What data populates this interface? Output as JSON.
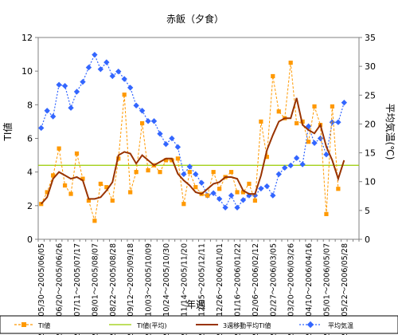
{
  "chart_data": {
    "type": "line",
    "title": "赤飯（夕食）",
    "xlabel": "年週",
    "ylabel_left": "TI値",
    "ylabel_right": "平均気温(℃)",
    "ylim_left": [
      0,
      12
    ],
    "ylim_right": [
      0,
      35
    ],
    "yticks_left": [
      0,
      2,
      4,
      6,
      8,
      10,
      12
    ],
    "yticks_right": [
      0,
      5,
      10,
      15,
      20,
      25,
      30,
      35
    ],
    "n_weeks": 54,
    "xtick_labels": [
      "2005/05/30〜2005/06/05",
      "2005/06/20〜2005/06/26",
      "2005/07/11〜2005/07/17",
      "2005/08/01〜2005/08/07",
      "2005/08/22〜2005/08/28",
      "2005/09/12〜2005/09/18",
      "2005/10/03〜2005/10/09",
      "2005/10/24〜2005/10/30",
      "2005/11/14〜2005/11/20",
      "2005/12/05〜2005/12/11",
      "2005/12/26〜2006/01/01",
      "2006/01/16〜2006/01/22",
      "2006/02/06〜2006/02/12",
      "2006/02/27〜2006/03/05",
      "2006/03/20〜2006/03/26",
      "2006/04/10〜2006/04/16",
      "2006/05/01〜2006/05/07",
      "2006/05/22〜2006/05/28"
    ],
    "legend": {
      "position": "bottom",
      "entries": [
        "TI値",
        "TI値(平均)",
        "3週移動平均TI値",
        "平均気温"
      ]
    },
    "colors": {
      "ti": "#FF9900",
      "ti_avg": "#99CC00",
      "moving_avg": "#993300",
      "temperature": "#3366FF"
    },
    "series": [
      {
        "name": "TI値",
        "axis": "left",
        "values": [
          2.1,
          2.8,
          3.8,
          5.4,
          3.2,
          2.7,
          5.1,
          3.6,
          2.3,
          1.1,
          3.3,
          3.1,
          2.3,
          4.8,
          8.6,
          2.8,
          4.0,
          6.9,
          4.1,
          4.4,
          4.0,
          4.7,
          4.7,
          4.8,
          2.1,
          4.0,
          3.1,
          2.7,
          2.6,
          4.0,
          3.0,
          3.7,
          4.0,
          2.8,
          2.8,
          3.3,
          2.3,
          7.0,
          4.9,
          9.7,
          7.6,
          7.2,
          10.5,
          6.9,
          7.0,
          5.8,
          7.9,
          6.8,
          1.5,
          7.9,
          3.0,
          null,
          null,
          null
        ]
      },
      {
        "name": "TI値(平均)",
        "axis": "left",
        "values": [
          4.4
        ]
      },
      {
        "name": "3週移動平均TI値",
        "axis": "left",
        "values": [
          2.1,
          2.5,
          3.6,
          4.0,
          3.8,
          3.6,
          3.7,
          3.5,
          2.4,
          2.4,
          2.5,
          2.9,
          3.4,
          5.0,
          5.2,
          5.1,
          4.5,
          5.0,
          4.7,
          4.4,
          4.6,
          4.8,
          4.8,
          3.9,
          3.5,
          3.2,
          2.8,
          2.7,
          3.0,
          3.3,
          3.4,
          3.7,
          3.7,
          3.6,
          2.9,
          2.7,
          2.7,
          3.8,
          5.3,
          6.2,
          7.0,
          7.2,
          7.2,
          8.4,
          6.8,
          6.5,
          6.3,
          6.8,
          5.5,
          4.7,
          3.6,
          4.7,
          null,
          null
        ]
      },
      {
        "name": "平均気温",
        "axis": "right",
        "values": [
          19.3,
          22.3,
          21.3,
          26.8,
          26.6,
          22.8,
          25.6,
          27.3,
          29.8,
          32.0,
          29.5,
          30.7,
          28.3,
          29.1,
          27.8,
          26.3,
          23.2,
          22.3,
          20.5,
          20.5,
          18.3,
          16.5,
          17.5,
          16.0,
          11.3,
          12.6,
          11.3,
          9.8,
          7.6,
          8.0,
          7.0,
          5.5,
          7.6,
          5.5,
          6.8,
          7.6,
          7.6,
          8.8,
          9.2,
          7.6,
          11.3,
          12.4,
          12.8,
          14.1,
          13.0,
          19.6,
          16.7,
          17.5,
          14.7,
          20.3,
          20.3,
          23.7,
          null,
          null
        ]
      }
    ]
  }
}
